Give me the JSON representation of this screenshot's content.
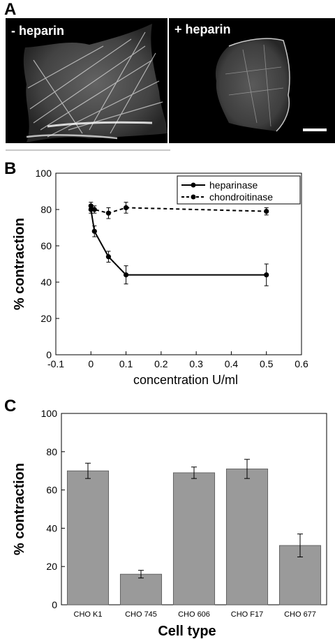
{
  "panels": {
    "a": {
      "letter": "A",
      "left_label": "- heparin",
      "right_label": "+ heparin"
    },
    "b": {
      "letter": "B"
    },
    "c": {
      "letter": "C"
    }
  },
  "chart_data": [
    {
      "type": "line",
      "xlabel": "concentration U/ml",
      "ylabel": "% contraction",
      "xlim": [
        -0.1,
        0.6
      ],
      "ylim": [
        0,
        100
      ],
      "x_ticks": [
        "-0.1",
        "0",
        "0.1",
        "0.2",
        "0.3",
        "0.4",
        "0.5",
        "0.6"
      ],
      "y_ticks": [
        "0",
        "20",
        "40",
        "60",
        "80",
        "100"
      ],
      "legend_position": "top-right",
      "series": [
        {
          "name": "heparinase",
          "line_style": "solid",
          "x": [
            0,
            0.01,
            0.05,
            0.1,
            0.5
          ],
          "y": [
            80,
            68,
            54,
            44,
            44
          ],
          "error": [
            2,
            3,
            3,
            5,
            6
          ]
        },
        {
          "name": "chondroitinase",
          "line_style": "dashed",
          "x": [
            0,
            0.01,
            0.05,
            0.1,
            0.5
          ],
          "y": [
            82,
            80,
            78,
            81,
            79
          ],
          "error": [
            2,
            2,
            3,
            3,
            2
          ]
        }
      ]
    },
    {
      "type": "bar",
      "xlabel": "Cell type",
      "ylabel": "% contraction",
      "ylim": [
        0,
        100
      ],
      "y_ticks": [
        "0",
        "20",
        "40",
        "60",
        "80",
        "100"
      ],
      "categories": [
        "CHO K1",
        "CHO 745",
        "CHO 606",
        "CHO F17",
        "CHO 677"
      ],
      "values": [
        70,
        16,
        69,
        71,
        31
      ],
      "error": [
        4,
        2,
        3,
        5,
        6
      ],
      "bar_color": "#9a9a9a"
    }
  ]
}
